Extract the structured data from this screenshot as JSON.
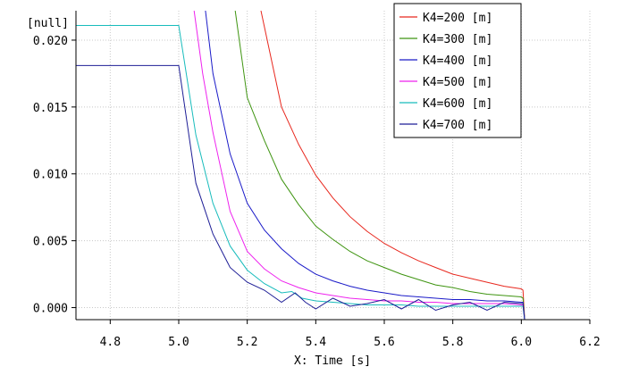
{
  "chart_data": {
    "type": "line",
    "title": "",
    "ylabel": "[null]",
    "xlabel": "X: Time [s]",
    "xlim": [
      4.7,
      6.2
    ],
    "ylim": [
      -0.0009,
      0.0222
    ],
    "grid": true,
    "legend_position": "top-right",
    "xticks": [
      4.8,
      5.0,
      5.2,
      5.4,
      5.6,
      5.8,
      6.0,
      6.2
    ],
    "xtick_labels": [
      "4.8",
      "5.0",
      "5.2",
      "5.4",
      "5.6",
      "5.8",
      "6.0",
      "6.2"
    ],
    "yticks": [
      0.0,
      0.005,
      0.01,
      0.015,
      0.02
    ],
    "ytick_labels": [
      "0.000",
      "0.005",
      "0.010",
      "0.015",
      "0.020"
    ],
    "series": [
      {
        "name": "K4=200 [m]",
        "color": "#e8281e",
        "x": [
          5.24,
          5.3,
          5.35,
          5.4,
          5.45,
          5.5,
          5.55,
          5.6,
          5.65,
          5.7,
          5.75,
          5.8,
          5.85,
          5.9,
          5.95,
          6.0,
          6.005,
          6.01
        ],
        "y": [
          0.0222,
          0.015,
          0.0122,
          0.0099,
          0.0082,
          0.0068,
          0.0057,
          0.0048,
          0.0041,
          0.0035,
          0.003,
          0.0025,
          0.0022,
          0.0019,
          0.0016,
          0.0014,
          0.0013,
          -0.001
        ]
      },
      {
        "name": "K4=300 [m]",
        "color": "#3e9410",
        "x": [
          5.165,
          5.2,
          5.25,
          5.3,
          5.35,
          5.4,
          5.45,
          5.5,
          5.55,
          5.6,
          5.65,
          5.7,
          5.75,
          5.8,
          5.85,
          5.9,
          5.95,
          6.0,
          6.005,
          6.01
        ],
        "y": [
          0.0222,
          0.0157,
          0.0125,
          0.0096,
          0.0077,
          0.0061,
          0.0051,
          0.0042,
          0.0035,
          0.003,
          0.0025,
          0.0021,
          0.0017,
          0.0015,
          0.0012,
          0.001,
          0.0009,
          0.0008,
          0.0007,
          -0.001
        ]
      },
      {
        "name": "K4=400 [m]",
        "color": "#1a1ac8",
        "x": [
          5.078,
          5.1,
          5.15,
          5.2,
          5.25,
          5.3,
          5.35,
          5.4,
          5.45,
          5.5,
          5.55,
          5.6,
          5.65,
          5.7,
          5.75,
          5.8,
          5.85,
          5.9,
          5.95,
          6.0,
          6.005,
          6.01
        ],
        "y": [
          0.0222,
          0.0175,
          0.0115,
          0.0078,
          0.0058,
          0.0044,
          0.0033,
          0.0025,
          0.002,
          0.0016,
          0.0013,
          0.0011,
          0.0009,
          0.0008,
          0.0007,
          0.0006,
          0.0006,
          0.0005,
          0.0005,
          0.0004,
          0.0004,
          -0.001
        ]
      },
      {
        "name": "K4=500 [m]",
        "color": "#ee22ee",
        "x": [
          5.045,
          5.07,
          5.1,
          5.15,
          5.2,
          5.25,
          5.3,
          5.35,
          5.4,
          5.45,
          5.5,
          5.55,
          5.6,
          5.65,
          5.7,
          5.75,
          5.8,
          5.85,
          5.9,
          5.95,
          6.0,
          6.005,
          6.01
        ],
        "y": [
          0.0222,
          0.0175,
          0.0131,
          0.0072,
          0.0042,
          0.0029,
          0.002,
          0.0015,
          0.0011,
          0.0009,
          0.0007,
          0.0006,
          0.0005,
          0.0005,
          0.0004,
          0.0004,
          0.0003,
          0.0003,
          0.0003,
          0.0003,
          0.0002,
          0.0002,
          -0.001
        ]
      },
      {
        "name": "K4=600 [m]",
        "color": "#18bcbc",
        "x": [
          4.7,
          5.0,
          5.05,
          5.1,
          5.15,
          5.2,
          5.25,
          5.3,
          5.33,
          5.36,
          5.4,
          5.45,
          5.5,
          5.55,
          5.6,
          5.65,
          5.7,
          5.75,
          5.8,
          5.85,
          5.9,
          5.95,
          6.0,
          6.005,
          6.01
        ],
        "y": [
          0.0211,
          0.0211,
          0.0129,
          0.0078,
          0.0046,
          0.0028,
          0.0018,
          0.0011,
          0.0012,
          0.0007,
          0.0005,
          0.0004,
          0.0003,
          0.0002,
          0.0002,
          0.0002,
          0.0001,
          0.0001,
          0.0001,
          0.0001,
          0.0001,
          0.0001,
          0.0001,
          0.0001,
          -0.001
        ]
      },
      {
        "name": "K4=700 [m]",
        "color": "#1e1e96",
        "x": [
          4.7,
          5.0,
          5.05,
          5.1,
          5.15,
          5.2,
          5.25,
          5.3,
          5.34,
          5.37,
          5.4,
          5.45,
          5.5,
          5.55,
          5.6,
          5.65,
          5.7,
          5.75,
          5.8,
          5.85,
          5.9,
          5.95,
          6.0,
          6.005,
          6.01
        ],
        "y": [
          0.0181,
          0.0181,
          0.0093,
          0.0055,
          0.003,
          0.0019,
          0.0013,
          0.0004,
          0.0011,
          0.0004,
          -0.0001,
          0.0007,
          0.0001,
          0.0003,
          0.0006,
          -0.0001,
          0.0006,
          -0.0002,
          0.0002,
          0.0004,
          -0.0002,
          0.0004,
          0.0003,
          0.0003,
          -0.001
        ]
      }
    ]
  }
}
